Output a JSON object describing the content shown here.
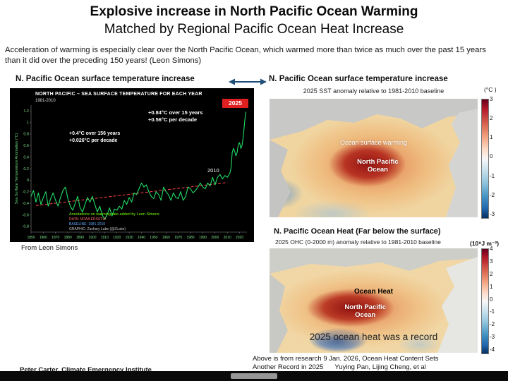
{
  "header": {
    "title_line1": "Explosive increase in North Pacific Ocean Warming",
    "title_line2": "Matched by Regional Pacific Ocean Heat Increase",
    "intro": "Acceleration of warming is especially clear over the North Pacific Ocean, which warmed more than twice as much over the past 15 years than it did over the preceding 150 years! (Leon Simons)"
  },
  "left_panel": {
    "header": "N. Pacific Ocean surface temperature increase",
    "source_caption": "From Leon Simons",
    "chart": {
      "title": "NORTH PACIFIC – SEA SURFACE TEMPERATURE FOR EACH YEAR",
      "baseline": "1981-2010",
      "badge": "2025",
      "recent_line1": "+0.84°C over 15 years",
      "recent_line2": "+0.56°C per decade",
      "longterm_line1": "+0.4°C over 156 years",
      "longterm_line2": "+0.026°C per decade",
      "trend_end_label": "2010",
      "y_axis_label": "Sea Surface Temperature Anomalies (°C)",
      "credit_1": "Annotations on warming rate added by Leon Simons",
      "credit_2": "DATA: NOAA ERSSTv5",
      "credit_3": "BASELINE: 1981-2010",
      "credit_4": "GRAPHIC: Zachary Labe (@ZLabe)"
    }
  },
  "sst_panel": {
    "header": "N. Pacific Ocean surface temperature increase",
    "unit": "(°C )",
    "subtitle": "2025 SST anomaly relative to 1981-2010 baseline",
    "label_warming": "Ocean surface warming",
    "label_region1": "North Pacific",
    "label_region2": "Ocean",
    "colorbar_ticks": [
      "3",
      "2",
      "1",
      "0",
      "-1",
      "-2",
      "-3"
    ]
  },
  "ohc_panel": {
    "header_main": "N. Pacific Ocean Heat",
    "header_paren": "(Far below the surface)",
    "subtitle": "2025 OHC (0-2000 m) anomaly relative to 1981-2010 baseline",
    "unit": "(10⁹J m⁻²)",
    "label_heat": "Ocean Heat",
    "label_region1": "North Pacific",
    "label_region2": "Ocean",
    "record_text": "2025 ocean heat was a record",
    "colorbar_ticks": [
      "4",
      "3",
      "2",
      "1",
      "0",
      "-1",
      "-2",
      "-3",
      "-4"
    ]
  },
  "footer": {
    "left": "Peter Carter, Climate Emergency Institute",
    "right_line1": "Above is from research 9 Jan. 2026, Ocean Heat Content Sets",
    "right_line2": "Another Record in 2025",
    "right_authors": "Yuying Pan, Lijing Cheng, et al"
  },
  "colors": {
    "line_green": "#22dd66",
    "trend_red": "#ff4444",
    "badge_red": "#e02020",
    "arrow_blue": "#1f4e79"
  },
  "chart_data": [
    {
      "type": "line",
      "title": "NORTH PACIFIC – SEA SURFACE TEMPERATURE FOR EACH YEAR",
      "ylabel": "Sea Surface Temperature Anomalies (°C)",
      "xlabel": "",
      "xlim": [
        1850,
        2026
      ],
      "ylim": [
        -0.9,
        1.3
      ],
      "x_ticks": [
        1850,
        1860,
        1870,
        1880,
        1890,
        1900,
        1910,
        1920,
        1930,
        1940,
        1950,
        1960,
        1970,
        1980,
        1990,
        2000,
        2010,
        2020
      ],
      "y_ticks": [
        1.2,
        1.0,
        0.8,
        0.6,
        0.4,
        0.2,
        0,
        -0.2,
        -0.4,
        -0.6,
        -0.8
      ],
      "series": [
        {
          "name": "N. Pacific SST anomaly vs 1981-2010",
          "points": [
            [
              1850,
              -0.28
            ],
            [
              1852,
              -0.18
            ],
            [
              1854,
              -0.38
            ],
            [
              1856,
              -0.22
            ],
            [
              1858,
              -0.42
            ],
            [
              1860,
              -0.3
            ],
            [
              1862,
              -0.2
            ],
            [
              1864,
              -0.45
            ],
            [
              1866,
              -0.32
            ],
            [
              1868,
              -0.22
            ],
            [
              1870,
              -0.35
            ],
            [
              1872,
              -0.45
            ],
            [
              1874,
              -0.3
            ],
            [
              1876,
              -0.18
            ],
            [
              1878,
              -0.12
            ],
            [
              1880,
              -0.32
            ],
            [
              1882,
              -0.45
            ],
            [
              1884,
              -0.52
            ],
            [
              1886,
              -0.4
            ],
            [
              1888,
              -0.28
            ],
            [
              1890,
              -0.48
            ],
            [
              1892,
              -0.55
            ],
            [
              1894,
              -0.42
            ],
            [
              1896,
              -0.3
            ],
            [
              1898,
              -0.38
            ],
            [
              1900,
              -0.28
            ],
            [
              1902,
              -0.42
            ],
            [
              1904,
              -0.55
            ],
            [
              1906,
              -0.45
            ],
            [
              1908,
              -0.6
            ],
            [
              1910,
              -0.68
            ],
            [
              1912,
              -0.6
            ],
            [
              1914,
              -0.48
            ],
            [
              1916,
              -0.62
            ],
            [
              1918,
              -0.5
            ],
            [
              1920,
              -0.52
            ],
            [
              1922,
              -0.45
            ],
            [
              1924,
              -0.5
            ],
            [
              1926,
              -0.35
            ],
            [
              1928,
              -0.42
            ],
            [
              1930,
              -0.3
            ],
            [
              1932,
              -0.38
            ],
            [
              1934,
              -0.22
            ],
            [
              1936,
              -0.25
            ],
            [
              1938,
              -0.15
            ],
            [
              1940,
              -0.05
            ],
            [
              1942,
              -0.12
            ],
            [
              1944,
              -0.08
            ],
            [
              1946,
              -0.2
            ],
            [
              1948,
              -0.28
            ],
            [
              1950,
              -0.32
            ],
            [
              1952,
              -0.2
            ],
            [
              1954,
              -0.25
            ],
            [
              1956,
              -0.35
            ],
            [
              1958,
              -0.12
            ],
            [
              1960,
              -0.2
            ],
            [
              1962,
              -0.25
            ],
            [
              1964,
              -0.35
            ],
            [
              1966,
              -0.22
            ],
            [
              1968,
              -0.3
            ],
            [
              1970,
              -0.32
            ],
            [
              1972,
              -0.2
            ],
            [
              1974,
              -0.35
            ],
            [
              1976,
              -0.28
            ],
            [
              1978,
              -0.12
            ],
            [
              1980,
              -0.15
            ],
            [
              1982,
              -0.22
            ],
            [
              1984,
              -0.18
            ],
            [
              1986,
              -0.12
            ],
            [
              1988,
              -0.05
            ],
            [
              1990,
              -0.12
            ],
            [
              1992,
              -0.15
            ],
            [
              1994,
              -0.05
            ],
            [
              1996,
              -0.1
            ],
            [
              1998,
              0.05
            ],
            [
              2000,
              -0.08
            ],
            [
              2002,
              0.05
            ],
            [
              2004,
              0.1
            ],
            [
              2006,
              0.02
            ],
            [
              2008,
              0.08
            ],
            [
              2010,
              0.05
            ],
            [
              2012,
              0.12
            ],
            [
              2013,
              0.2
            ],
            [
              2014,
              0.48
            ],
            [
              2015,
              0.55
            ],
            [
              2016,
              0.5
            ],
            [
              2017,
              0.42
            ],
            [
              2018,
              0.48
            ],
            [
              2019,
              0.62
            ],
            [
              2020,
              0.65
            ],
            [
              2021,
              0.55
            ],
            [
              2022,
              0.6
            ],
            [
              2023,
              0.75
            ],
            [
              2024,
              0.98
            ],
            [
              2025,
              1.18
            ]
          ]
        }
      ],
      "trend": {
        "x1": 1854,
        "y1": -0.44,
        "x2": 2010,
        "y2": -0.04,
        "style": "dashed-red",
        "label": "+0.4°C over 156 years"
      }
    },
    {
      "type": "heatmap",
      "title": "2025 SST anomaly relative to 1981-2010 baseline",
      "unit": "°C",
      "colorbar_range": [
        -3,
        3
      ],
      "colorbar_ticks": [
        3,
        2,
        1,
        0,
        -1,
        -2,
        -3
      ],
      "annotations": [
        "Ocean surface warming",
        "North Pacific Ocean"
      ]
    },
    {
      "type": "heatmap",
      "title": "2025 OHC (0-2000 m) anomaly relative to 1981-2010 baseline",
      "unit": "10⁹J m⁻²",
      "colorbar_range": [
        -4,
        4
      ],
      "colorbar_ticks": [
        4,
        3,
        2,
        1,
        0,
        -1,
        -2,
        -3,
        -4
      ],
      "annotations": [
        "Ocean Heat",
        "North Pacific Ocean",
        "2025 ocean heat was a record"
      ]
    }
  ]
}
